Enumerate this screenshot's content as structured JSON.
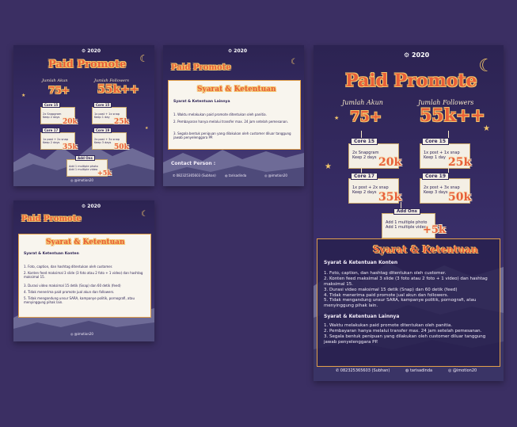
{
  "title": "Paid Promote",
  "logo_text": "2020",
  "stat_followers_label": "Jumlah Followers",
  "stat_account_label": "Jumlah Akun",
  "stat_account_value": "75+",
  "stat_followers_value": "55k++",
  "packages": [
    {
      "name": "Core 15",
      "lines": [
        "2x Snapgram",
        "Keep 2 days"
      ],
      "price": "20k"
    },
    {
      "name": "Core 15",
      "lines": [
        "1x post + 1x snap",
        "Keep 1 day"
      ],
      "price": "25k"
    },
    {
      "name": "Core 17",
      "lines": [
        "1x post + 2x snap",
        "Keep 2 days"
      ],
      "price": "35k"
    },
    {
      "name": "Core 19",
      "lines": [
        "2x post + 3x snap",
        "Keep 3 days"
      ],
      "price": "50k"
    }
  ],
  "addon": {
    "name": "Add Ons",
    "lines": [
      "Add 1 multiple photo",
      "Add 1 multiple video"
    ],
    "price": "+5k"
  },
  "terms_title": "Syarat & Ketentuan",
  "terms_konten_heading": "Syarat & Ketentuan Konten",
  "terms_konten": [
    "1.  Foto, caption, dan hashtag ditentukan oleh customer.",
    "2.  Konten feed maksimal 3 slide (3 foto atau 2 foto + 1 video) dan hashtag maksimal 15.",
    "3. Durasi video maksimal 15 detik (Snap) dan 60 detik (feed)",
    "4. Tidak menerima paid promote jual akun dan followers.",
    "5. Tidak mengandung unsur SARA, kampanye politik, pornografi, atau menyinggung pihak lain."
  ],
  "terms_lainnya_heading": "Syarat & Ketentuan Lainnya",
  "terms_lainnya": [
    "1. Waktu melakukan paid promote ditentukan oleh panitia.",
    "2. Pembayaran hanya melalui transfer max. 24 jam setelah pemesanan.",
    "3. Segala bentuk penipuan yang dilakukan oleh customer diluar tanggung jawab penyelenggara PP."
  ],
  "contact_heading": "Contact Person :",
  "contacts": [
    "082325365603 (Subhan)",
    "tarisadinda",
    "@imotion20"
  ],
  "colors": {
    "accent": "#e8603a",
    "gold": "#f3c66b",
    "bg": "#2e2556",
    "page": "#3b2f63"
  }
}
